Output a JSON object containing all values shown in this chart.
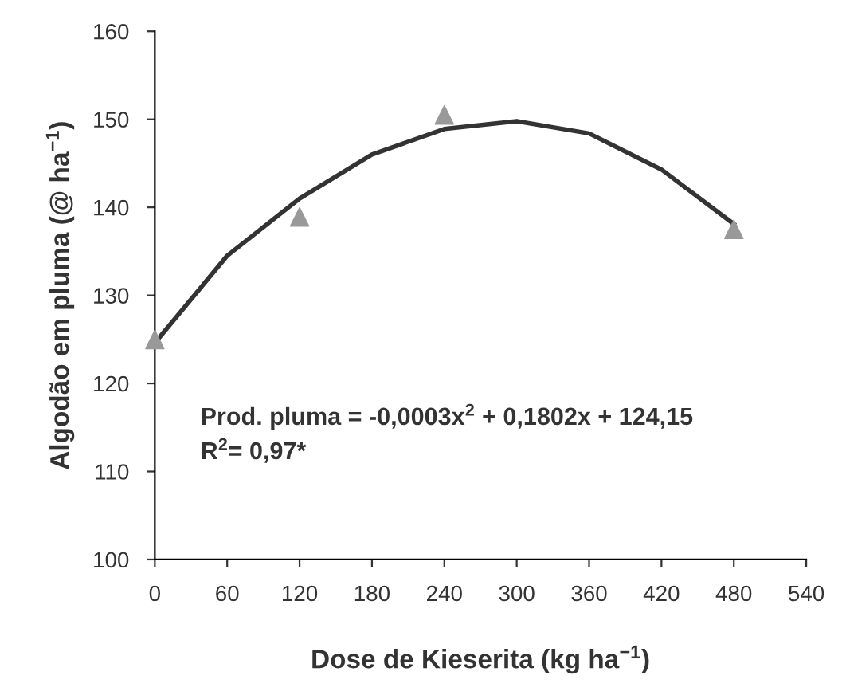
{
  "chart_data": {
    "type": "scatter",
    "xlabel": "Dose de Kieserita (kg ha$^{−1}$)",
    "ylabel": "Algodão em pluma (@ ha$^{−1}$)",
    "series": [
      {
        "color": "#999999",
        "marker": "triangle",
        "x": [
          0,
          120,
          240,
          480
        ],
        "values": [
          125,
          138.9,
          150.5,
          137.5
        ]
      },
      {
        "type": "line",
        "color": "#333333",
        "marker": "none",
        "line_style": "solid",
        "x": [
          0,
          60,
          120,
          180,
          240,
          300,
          360,
          420,
          480
        ],
        "values": [
          124.6,
          134.5,
          141,
          146,
          148.9,
          149.8,
          148.4,
          144.3,
          138.1
        ]
      }
    ],
    "xlim": [
      0,
      540
    ],
    "xticks": [
      0,
      60,
      120,
      180,
      240,
      300,
      360,
      420,
      480,
      540
    ],
    "ylim": [
      100,
      160
    ],
    "yticks": [
      100,
      110,
      120,
      130,
      140,
      150,
      160
    ],
    "grid": false,
    "legend": false,
    "annotations": [
      "Prod. pluma = -0,0003x$^{2}$ + 0,1802x + 124,15",
      "R$^{2}$= 0,97*"
    ]
  }
}
